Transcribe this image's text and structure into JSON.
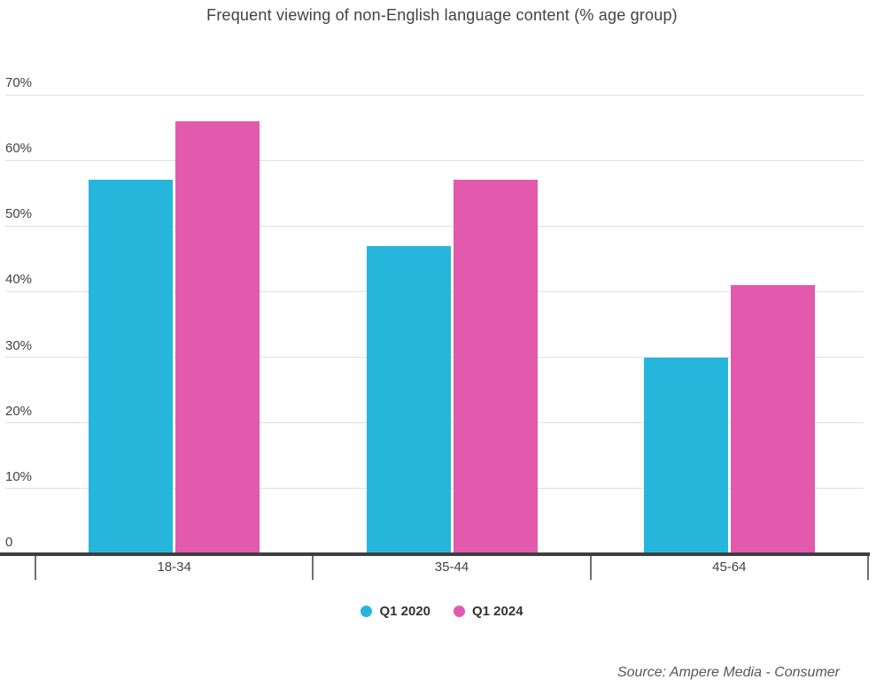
{
  "source": "Source: Ampere Media - Consumer",
  "chart_data": {
    "type": "bar",
    "title": "Frequent viewing of non-English language content (% age group)",
    "categories": [
      "18-34",
      "35-44",
      "45-64"
    ],
    "series": [
      {
        "name": "Q1 2020",
        "color": "#26b6dc",
        "values": [
          57,
          47,
          30
        ]
      },
      {
        "name": "Q1 2024",
        "color": "#e25aae",
        "values": [
          66,
          57,
          41
        ]
      }
    ],
    "ylim": [
      0,
      70
    ],
    "yticks": [
      {
        "value": 70,
        "label": "70%"
      },
      {
        "value": 60,
        "label": "60%"
      },
      {
        "value": 50,
        "label": "50%"
      },
      {
        "value": 40,
        "label": "40%"
      },
      {
        "value": 30,
        "label": "30%"
      },
      {
        "value": 20,
        "label": "20%"
      },
      {
        "value": 10,
        "label": "10%"
      },
      {
        "value": 0,
        "label": "0"
      }
    ],
    "grid": "horizontal",
    "legend_position": "bottom",
    "colors": {
      "title_text": "#424242",
      "tick_text": "#424242",
      "gridline": "#e0e0e0",
      "axis_line": "#3e3e3e",
      "source_text": "#575757"
    }
  }
}
